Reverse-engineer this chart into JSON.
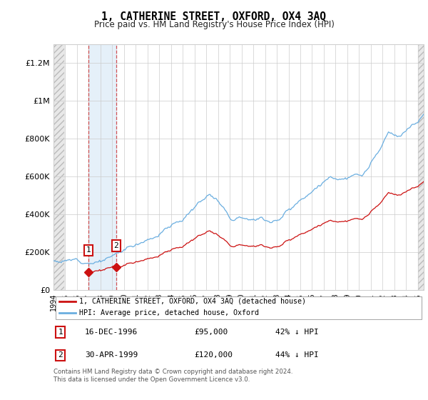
{
  "title": "1, CATHERINE STREET, OXFORD, OX4 3AQ",
  "subtitle": "Price paid vs. HM Land Registry's House Price Index (HPI)",
  "xlim_start": 1994.0,
  "xlim_end": 2025.5,
  "ylim_min": 0,
  "ylim_max": 1300000,
  "hpi_color": "#6aaee0",
  "price_color": "#cc1111",
  "purchase1_year": 1996.96,
  "purchase1_price": 95000,
  "purchase2_year": 1999.33,
  "purchase2_price": 120000,
  "legend_label1": "1, CATHERINE STREET, OXFORD, OX4 3AQ (detached house)",
  "legend_label2": "HPI: Average price, detached house, Oxford",
  "sale1_label": "16-DEC-1996",
  "sale1_amount": "£95,000",
  "sale1_hpi": "42% ↓ HPI",
  "sale2_label": "30-APR-1999",
  "sale2_amount": "£120,000",
  "sale2_hpi": "44% ↓ HPI",
  "footer": "Contains HM Land Registry data © Crown copyright and database right 2024.\nThis data is licensed under the Open Government Licence v3.0.",
  "yticks": [
    0,
    200000,
    400000,
    600000,
    800000,
    1000000,
    1200000
  ],
  "ytick_labels": [
    "£0",
    "£200K",
    "£400K",
    "£600K",
    "£800K",
    "£1M",
    "£1.2M"
  ],
  "xticks": [
    1994,
    1995,
    1996,
    1997,
    1998,
    1999,
    2000,
    2001,
    2002,
    2003,
    2004,
    2005,
    2006,
    2007,
    2008,
    2009,
    2010,
    2011,
    2012,
    2013,
    2014,
    2015,
    2016,
    2017,
    2018,
    2019,
    2020,
    2021,
    2022,
    2023,
    2024,
    2025
  ],
  "background_hatch_color": "#E0E0E0",
  "shaded_region_color": "#daeaf7",
  "hatch_left_end": 1994.92,
  "hatch_right_start": 2025.0
}
